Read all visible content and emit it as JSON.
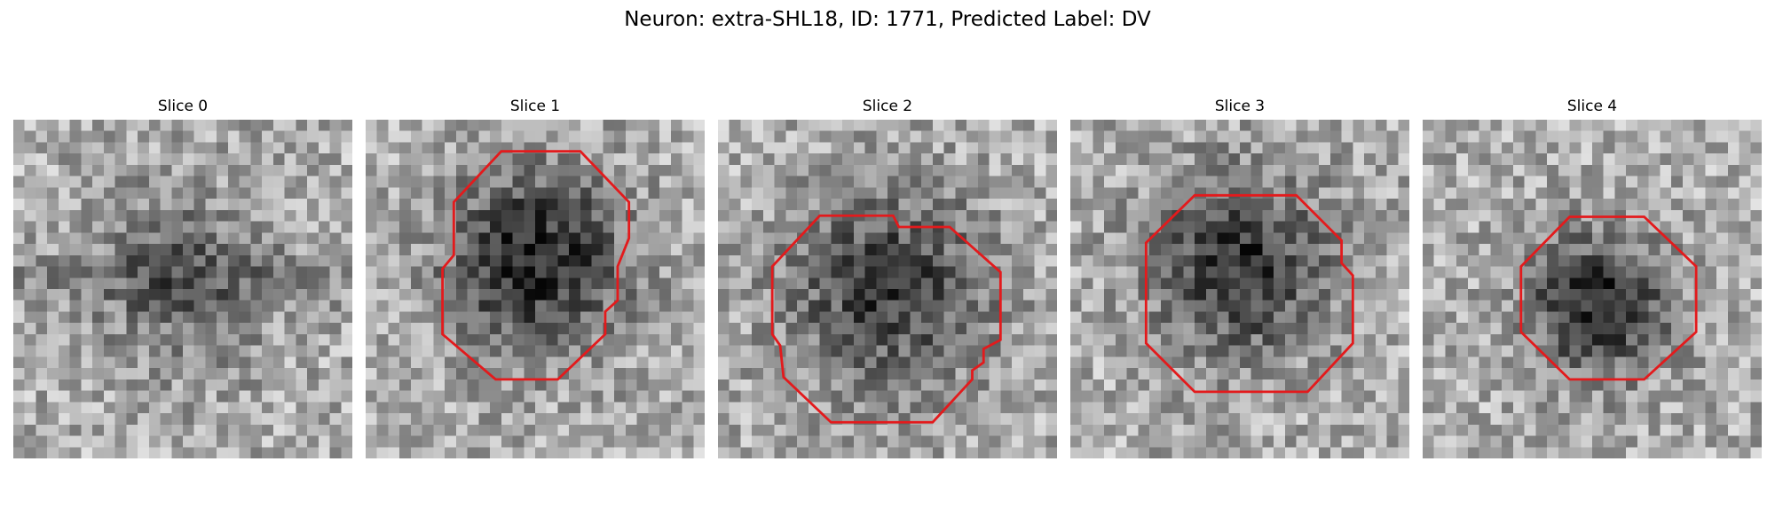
{
  "figure": {
    "title": "Neuron: extra-SHL18, ID: 1771, Predicted Label: DV"
  },
  "slices": [
    {
      "title": "Slice 0",
      "has_contour": false
    },
    {
      "title": "Slice 1",
      "has_contour": true
    },
    {
      "title": "Slice 2",
      "has_contour": true
    },
    {
      "title": "Slice 3",
      "has_contour": true
    },
    {
      "title": "Slice 4",
      "has_contour": true
    }
  ],
  "colors": {
    "contour": "#e31a1c",
    "background": "#ffffff"
  },
  "image": {
    "colormap": "grayscale",
    "grid": "30x30 pixel noise with dark blob centered"
  }
}
